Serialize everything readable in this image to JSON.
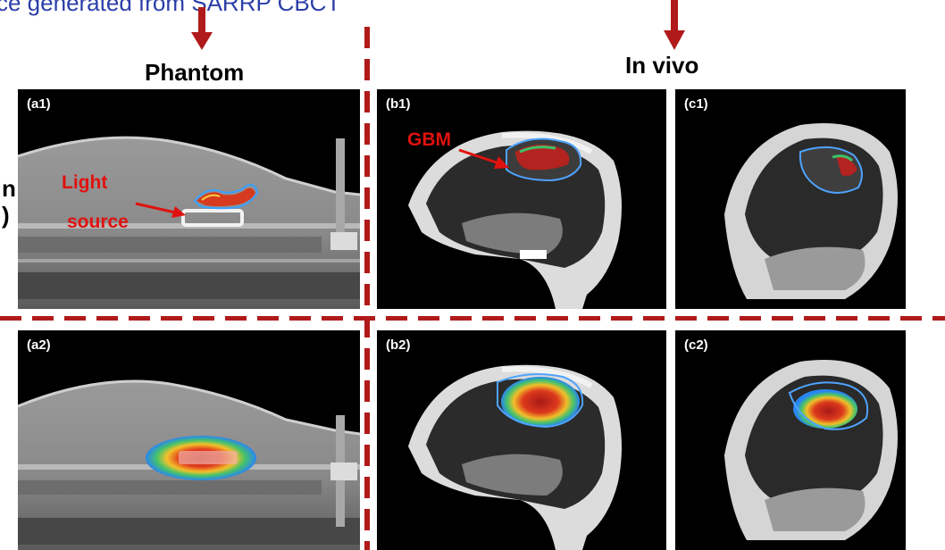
{
  "top_caption": "ce generated from SARRP CBCT",
  "headings": {
    "phantom": "Phantom",
    "in_vivo": "In vivo"
  },
  "left_fragment": {
    "line1": "n",
    "line2": ")"
  },
  "panels": {
    "a1": "(a1)",
    "b1": "(b1)",
    "c1": "(c1)",
    "a2": "(a2)",
    "b2": "(b2)",
    "c2": "(c2)"
  },
  "annotations": {
    "light_source": "Light source",
    "light_line1": "Light",
    "light_line2": "source",
    "gbm": "GBM"
  },
  "colors": {
    "caption_blue": "#2b3ea8",
    "arrow_red": "#b11a1a",
    "annotation_red": "#e0120f",
    "contour_blue": "#4ea3ff"
  }
}
